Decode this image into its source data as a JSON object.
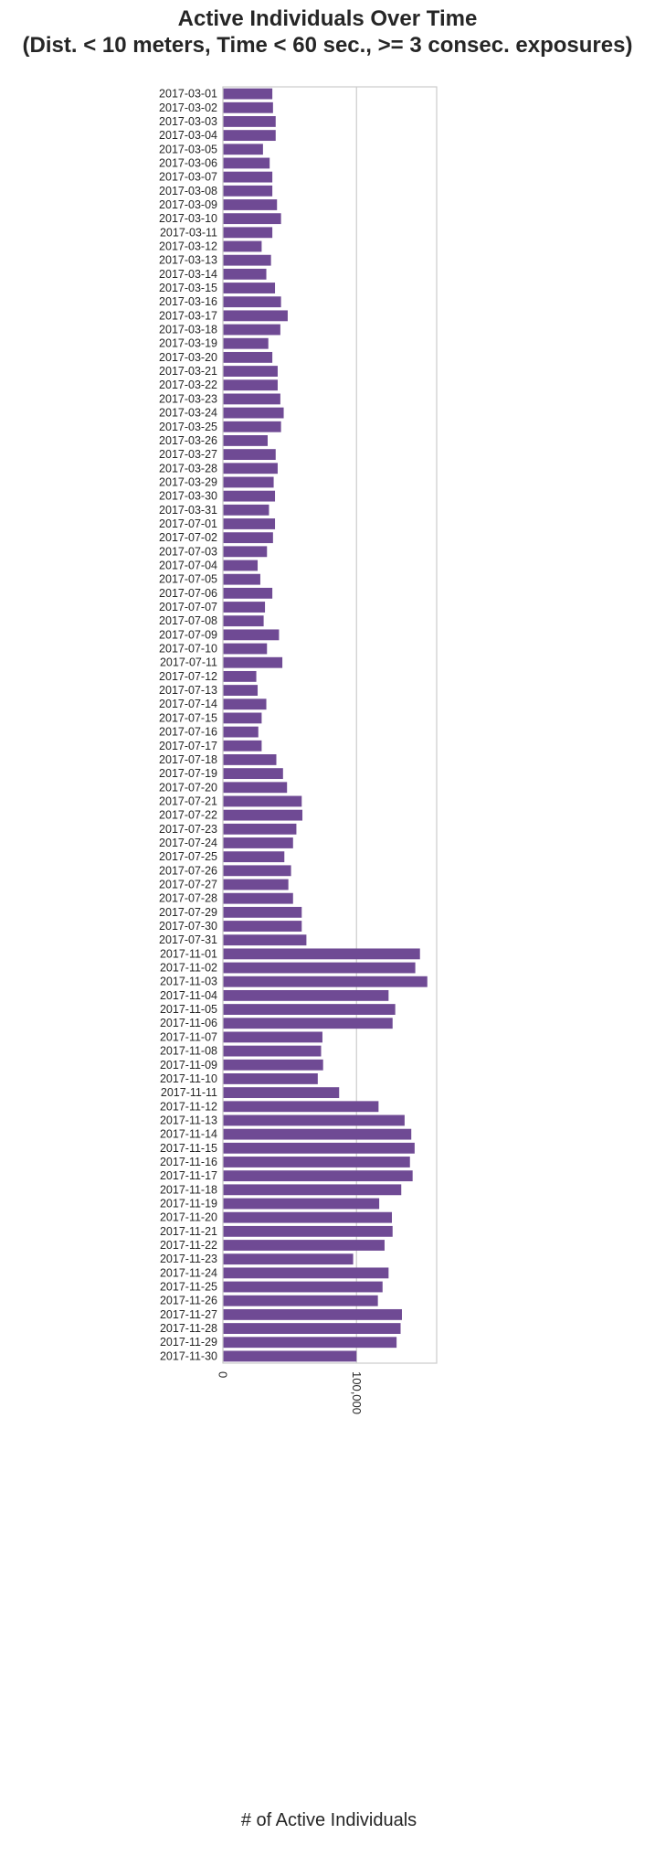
{
  "chart_data": {
    "type": "bar",
    "orientation": "horizontal",
    "title_lines": [
      "Active Individuals Over Time",
      "(Dist. < 10 meters, Time < 60 sec., >= 3 consec. exposures)"
    ],
    "xlabel": "# of Active Individuals",
    "ylabel": "",
    "xlim": [
      0,
      160000
    ],
    "xticks": [
      0,
      100000
    ],
    "xtick_labels": [
      "0",
      "100,000"
    ],
    "grid": true,
    "bar_color": "#6f4a94",
    "categories": [
      "2017-03-01",
      "2017-03-02",
      "2017-03-03",
      "2017-03-04",
      "2017-03-05",
      "2017-03-06",
      "2017-03-07",
      "2017-03-08",
      "2017-03-09",
      "2017-03-10",
      "2017-03-11",
      "2017-03-12",
      "2017-03-13",
      "2017-03-14",
      "2017-03-15",
      "2017-03-16",
      "2017-03-17",
      "2017-03-18",
      "2017-03-19",
      "2017-03-20",
      "2017-03-21",
      "2017-03-22",
      "2017-03-23",
      "2017-03-24",
      "2017-03-25",
      "2017-03-26",
      "2017-03-27",
      "2017-03-28",
      "2017-03-29",
      "2017-03-30",
      "2017-03-31",
      "2017-07-01",
      "2017-07-02",
      "2017-07-03",
      "2017-07-04",
      "2017-07-05",
      "2017-07-06",
      "2017-07-07",
      "2017-07-08",
      "2017-07-09",
      "2017-07-10",
      "2017-07-11",
      "2017-07-12",
      "2017-07-13",
      "2017-07-14",
      "2017-07-15",
      "2017-07-16",
      "2017-07-17",
      "2017-07-18",
      "2017-07-19",
      "2017-07-20",
      "2017-07-21",
      "2017-07-22",
      "2017-07-23",
      "2017-07-24",
      "2017-07-25",
      "2017-07-26",
      "2017-07-27",
      "2017-07-28",
      "2017-07-29",
      "2017-07-30",
      "2017-07-31",
      "2017-11-01",
      "2017-11-02",
      "2017-11-03",
      "2017-11-04",
      "2017-11-05",
      "2017-11-06",
      "2017-11-07",
      "2017-11-08",
      "2017-11-09",
      "2017-11-10",
      "2017-11-11",
      "2017-11-12",
      "2017-11-13",
      "2017-11-14",
      "2017-11-15",
      "2017-11-16",
      "2017-11-17",
      "2017-11-18",
      "2017-11-19",
      "2017-11-20",
      "2017-11-21",
      "2017-11-22",
      "2017-11-23",
      "2017-11-24",
      "2017-11-25",
      "2017-11-26",
      "2017-11-27",
      "2017-11-28",
      "2017-11-29",
      "2017-11-30"
    ],
    "values": [
      37000,
      37500,
      39500,
      39500,
      30000,
      35000,
      37000,
      37000,
      40500,
      43500,
      37000,
      29000,
      36000,
      32500,
      39000,
      43500,
      48500,
      43000,
      34000,
      37000,
      41000,
      41000,
      43000,
      45500,
      43500,
      33500,
      39500,
      41000,
      38000,
      39000,
      34500,
      39000,
      37500,
      33000,
      26000,
      28000,
      37000,
      31500,
      30500,
      42000,
      33000,
      44500,
      25000,
      26000,
      32500,
      29000,
      26500,
      29000,
      40000,
      45000,
      48000,
      59000,
      59500,
      55000,
      52500,
      46000,
      51000,
      49000,
      52500,
      59000,
      59000,
      62500,
      147500,
      144000,
      153000,
      124000,
      129000,
      127000,
      74500,
      73500,
      75000,
      71000,
      87000,
      116500,
      136000,
      141000,
      143500,
      140000,
      142000,
      133500,
      117000,
      126500,
      127000,
      121000,
      97500,
      124000,
      119500,
      116000,
      134000,
      133000,
      130000,
      100000
    ]
  }
}
